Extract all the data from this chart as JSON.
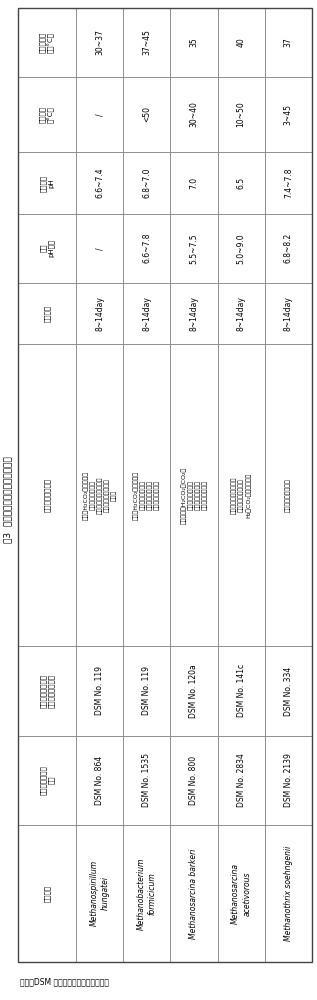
{
  "title": "表3  高温氢或乙酸营养型产甲烷菌",
  "note": "备注：DSM 为德国微生物菌种保藏中心",
  "headers": [
    "菌种名称",
    "菌种保藏中心及\n编号",
    "菌种保藏中心提供\n的培养基配方编号",
    "生长和产甲烷底物",
    "繁殖时间",
    "生长\npH范围",
    "最适生长\npH",
    "生长温度\n（°C）",
    "最适生长温\n度（°C）"
  ],
  "species": [
    {
      "name": "Methanospirillum\nhungatei",
      "accession": "DSM No. 864",
      "medium": "DSM No. 119",
      "substrates": "能利用H₂CO₂、甲酸产甲\n烷，不能利用乙酸\n和甲基化合物（例如甲\n醇、甲胺、二甲胺）\n产甲烷",
      "doubling": "8~14day",
      "ph_range": "/",
      "opt_ph": "6.6~7.4",
      "temp_range": "/",
      "opt_temp": "30~37"
    },
    {
      "name": "Methanobacterium\nformicicum",
      "accession": "DSM No. 1535",
      "medium": "DSM No. 119",
      "substrates": "能利用H₂CO₂、甲酸产甲\n烷，不能利用乙酸\n和甲基化合物，不\n能生化合成产甲烷",
      "doubling": "8~14day",
      "ph_range": "6.6~7.8",
      "opt_ph": "6.8~7.0",
      "temp_range": "<50",
      "opt_temp": "37~45"
    },
    {
      "name": "Methanosarcina barkeri",
      "accession": "DSM No. 800",
      "medium": "DSM No. 120a",
      "substrates": "能同时利用H₂CO₂、CO₂、\n乙酸、甲醇、甲基\n化合物，还能利用\n甲基化合物产甲烷",
      "doubling": "8~14day",
      "ph_range": "5.5~7.5",
      "opt_ph": "7.0",
      "temp_range": "30~40",
      "opt_temp": "35"
    },
    {
      "name": "Methanosarcina\nacetivorous",
      "accession": "DSM No. 2834",
      "medium": "DSM No. 141c",
      "substrates": "能利用乙酸和甲基化合\n物产甲烷，不能利用\nH₂、CO₂、甲酸产甲烷",
      "doubling": "8~14day",
      "ph_range": "5.0~9.0",
      "opt_ph": "6.5",
      "temp_range": "10~50",
      "opt_temp": "40"
    },
    {
      "name": "Methanothrix soehngenii",
      "accession": "DSM No. 2139",
      "medium": "DSM No. 334",
      "substrates": "只能利用乙酸产甲烷",
      "doubling": "8~14day",
      "ph_range": "6.8~8.2",
      "opt_ph": "7.4~7.8",
      "temp_range": "3~45",
      "opt_temp": "37"
    }
  ],
  "bg_color": "#ffffff",
  "line_color": "#888888",
  "text_color": "#000000"
}
